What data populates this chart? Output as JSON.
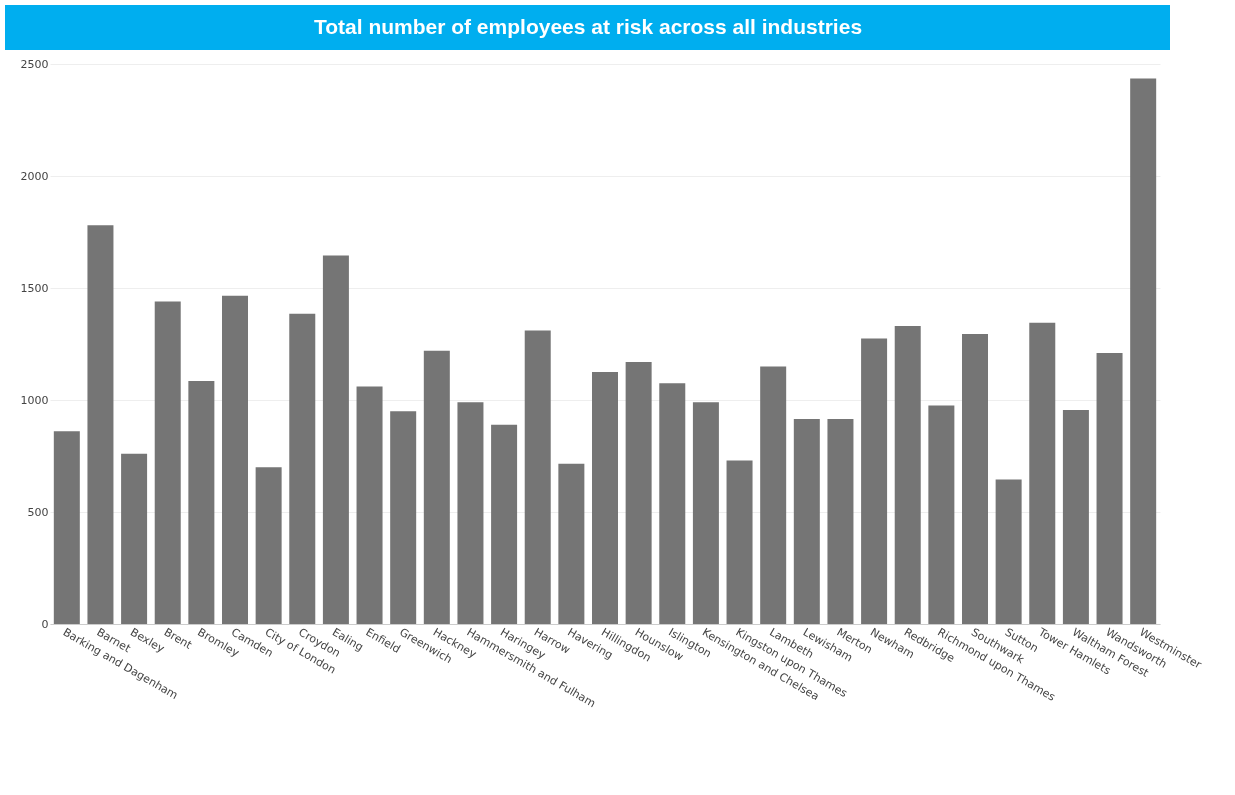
{
  "chart_data": {
    "type": "bar",
    "title": "Total number of employees at risk across all industries",
    "categories": [
      "Barking and Dagenham",
      "Barnet",
      "Bexley",
      "Brent",
      "Bromley",
      "Camden",
      "City of London",
      "Croydon",
      "Ealing",
      "Enfield",
      "Greenwich",
      "Hackney",
      "Hammersmith and Fulham",
      "Haringey",
      "Harrow",
      "Havering",
      "Hillingdon",
      "Hounslow",
      "Islington",
      "Kensington and Chelsea",
      "Kingston upon Thames",
      "Lambeth",
      "Lewisham",
      "Merton",
      "Newham",
      "Redbridge",
      "Richmond upon Thames",
      "Southwark",
      "Sutton",
      "Tower Hamlets",
      "Waltham Forest",
      "Wandsworth",
      "Westminster"
    ],
    "values": [
      860,
      1780,
      760,
      1440,
      1085,
      1465,
      700,
      1385,
      1645,
      1060,
      950,
      1220,
      990,
      890,
      1310,
      715,
      1125,
      1170,
      1075,
      990,
      730,
      1150,
      915,
      915,
      1275,
      1330,
      975,
      1295,
      645,
      1345,
      955,
      1210,
      2435
    ],
    "color": "#757575",
    "ylim": [
      0,
      2500
    ],
    "yticks": [
      0,
      500,
      1000,
      1500,
      2000,
      2500
    ],
    "grid": "y"
  }
}
